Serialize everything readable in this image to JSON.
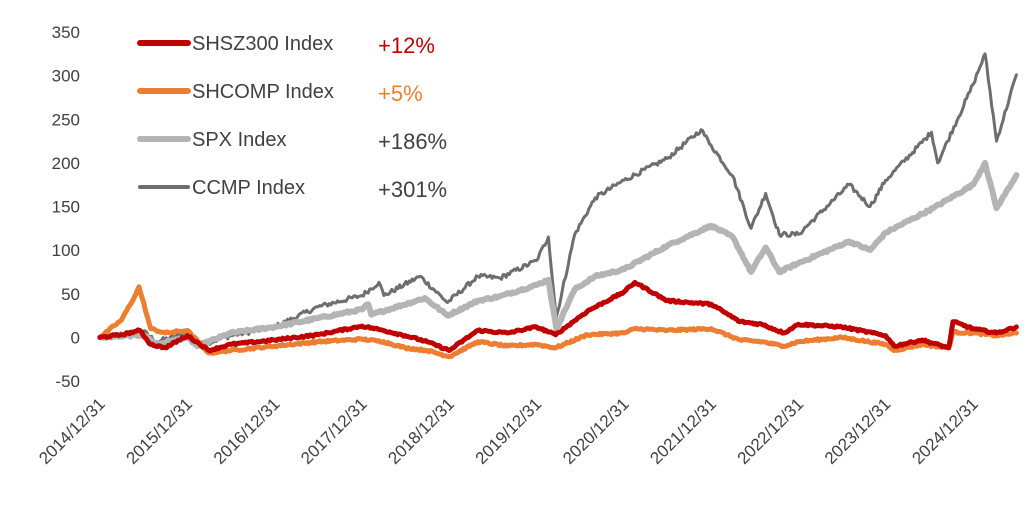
{
  "chart_data": {
    "type": "line",
    "title": "",
    "xlabel": "",
    "ylabel": "",
    "ylim": [
      -50,
      350
    ],
    "y_ticks": [
      "350",
      "300",
      "250",
      "200",
      "150",
      "100",
      "50",
      "0",
      "-50"
    ],
    "x_ticks": [
      "2014/12/31",
      "2015/12/31",
      "2016/12/31",
      "2017/12/31",
      "2018/12/31",
      "2019/12/31",
      "2020/12/31",
      "2021/12/31",
      "2022/12/31",
      "2023/12/31",
      "2024/12/31"
    ],
    "grid": false,
    "legend_position": "top-left",
    "series": [
      {
        "name": "SHSZ300 Index",
        "change": "+12%",
        "color": "#c00000",
        "change_color": "#c00000",
        "x": [
          "2014/12/31",
          "2015/03/31",
          "2015/05/31",
          "2015/06/15",
          "2015/07/31",
          "2015/09/30",
          "2015/12/31",
          "2016/03/31",
          "2016/06/30",
          "2016/12/31",
          "2017/06/30",
          "2017/12/31",
          "2018/03/31",
          "2018/06/30",
          "2018/09/30",
          "2018/12/31",
          "2019/04/30",
          "2019/08/31",
          "2019/12/31",
          "2020/03/20",
          "2020/07/31",
          "2020/12/31",
          "2021/02/15",
          "2021/06/30",
          "2021/12/31",
          "2022/04/30",
          "2022/07/31",
          "2022/10/31",
          "2022/12/31",
          "2023/06/30",
          "2023/12/31",
          "2024/02/05",
          "2024/05/31",
          "2024/09/20",
          "2024/10/08",
          "2024/12/31",
          "2025/04/08",
          "2025/06/30"
        ],
        "y": [
          0,
          3,
          7,
          8,
          -8,
          -12,
          2,
          -15,
          -8,
          -3,
          3,
          13,
          8,
          2,
          -5,
          -15,
          8,
          5,
          12,
          3,
          30,
          52,
          63,
          42,
          38,
          18,
          15,
          5,
          15,
          12,
          2,
          -10,
          -3,
          -12,
          18,
          10,
          5,
          12
        ]
      },
      {
        "name": "SHCOMP Index",
        "change": "+5%",
        "color": "#ed7d31",
        "change_color": "#ed7d31",
        "x": [
          "2014/12/31",
          "2015/03/31",
          "2015/05/31",
          "2015/06/12",
          "2015/07/31",
          "2015/09/30",
          "2015/12/31",
          "2016/03/31",
          "2016/06/30",
          "2016/12/31",
          "2017/06/30",
          "2017/12/31",
          "2018/03/31",
          "2018/06/30",
          "2018/09/30",
          "2018/12/31",
          "2019/04/30",
          "2019/08/31",
          "2019/12/31",
          "2020/03/20",
          "2020/07/31",
          "2020/12/31",
          "2021/02/15",
          "2021/06/30",
          "2021/12/31",
          "2022/04/30",
          "2022/07/31",
          "2022/10/31",
          "2022/12/31",
          "2023/06/30",
          "2023/12/31",
          "2024/02/05",
          "2024/05/31",
          "2024/09/20",
          "2024/10/08",
          "2024/12/31",
          "2025/04/08",
          "2025/06/30"
        ],
        "y": [
          0,
          20,
          50,
          58,
          10,
          5,
          8,
          -18,
          -15,
          -10,
          -5,
          -2,
          -5,
          -12,
          -15,
          -22,
          -5,
          -10,
          -8,
          -12,
          3,
          5,
          10,
          8,
          10,
          -3,
          -5,
          -10,
          -5,
          0,
          -8,
          -15,
          -8,
          -12,
          6,
          5,
          2,
          5
        ]
      },
      {
        "name": "SPX Index",
        "change": "+186%",
        "color": "#b4b4b4",
        "change_color": "#404040",
        "x": [
          "2014/12/31",
          "2015/06/30",
          "2015/08/25",
          "2015/12/31",
          "2016/02/11",
          "2016/06/30",
          "2016/12/31",
          "2017/06/30",
          "2017/12/31",
          "2018/01/26",
          "2018/02/08",
          "2018/09/20",
          "2018/12/24",
          "2019/04/30",
          "2019/07/31",
          "2019/12/31",
          "2020/02/19",
          "2020/03/23",
          "2020/06/08",
          "2020/09/02",
          "2020/12/31",
          "2021/06/30",
          "2021/12/31",
          "2022/03/31",
          "2022/06/16",
          "2022/08/16",
          "2022/10/12",
          "2022/12/31",
          "2023/07/31",
          "2023/10/27",
          "2023/12/31",
          "2024/07/16",
          "2024/12/31",
          "2025/02/19",
          "2025/04/08",
          "2025/06/30"
        ],
        "y": [
          0,
          3,
          -8,
          0,
          -10,
          5,
          12,
          22,
          32,
          38,
          26,
          45,
          25,
          42,
          47,
          60,
          66,
          10,
          55,
          70,
          78,
          105,
          128,
          115,
          75,
          103,
          75,
          85,
          110,
          100,
          120,
          148,
          175,
          200,
          148,
          186
        ]
      },
      {
        "name": "CCMP Index",
        "change": "+301%",
        "color": "#6e6e6e",
        "change_color": "#404040",
        "x": [
          "2014/12/31",
          "2015/06/30",
          "2015/08/25",
          "2015/12/31",
          "2016/02/11",
          "2016/06/30",
          "2016/12/31",
          "2017/06/30",
          "2017/12/31",
          "2018/03/12",
          "2018/04/02",
          "2018/08/31",
          "2018/12/24",
          "2019/04/30",
          "2019/07/31",
          "2019/12/31",
          "2020/02/19",
          "2020/03/23",
          "2020/06/08",
          "2020/09/02",
          "2020/12/31",
          "2021/06/30",
          "2021/11/19",
          "2021/12/31",
          "2022/03/31",
          "2022/06/16",
          "2022/08/16",
          "2022/10/12",
          "2022/12/31",
          "2023/07/31",
          "2023/10/27",
          "2023/12/31",
          "2024/07/10",
          "2024/08/05",
          "2024/12/31",
          "2025/02/19",
          "2025/04/08",
          "2025/06/30"
        ],
        "y": [
          0,
          7,
          -5,
          5,
          -10,
          2,
          12,
          35,
          48,
          63,
          48,
          70,
          40,
          70,
          68,
          88,
          115,
          22,
          118,
          160,
          180,
          205,
          238,
          220,
          185,
          125,
          165,
          118,
          118,
          175,
          150,
          180,
          235,
          200,
          290,
          325,
          225,
          301
        ]
      }
    ]
  }
}
